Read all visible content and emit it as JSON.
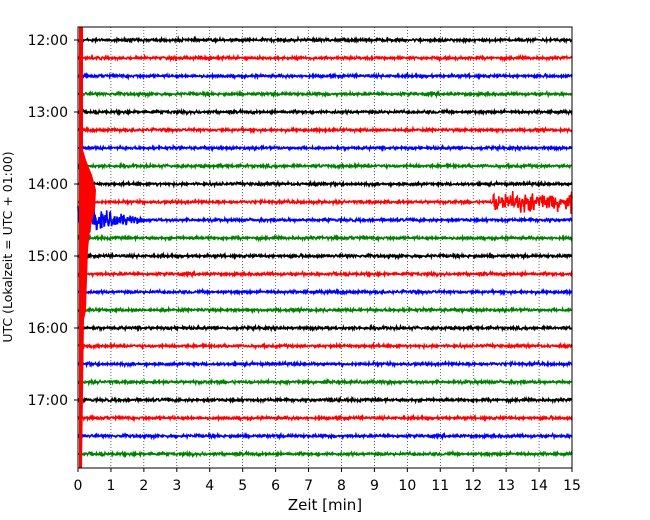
{
  "chart_data": {
    "type": "line",
    "title": "",
    "xlabel": "Zeit  [min]",
    "ylabel": "UTC (Lokalzeit = UTC + 01:00)",
    "xlim": [
      0,
      15
    ],
    "x_ticks": [
      0,
      1,
      2,
      3,
      4,
      5,
      6,
      7,
      8,
      9,
      10,
      11,
      12,
      13,
      14,
      15
    ],
    "y_ticks": [
      "12:00",
      "13:00",
      "14:00",
      "15:00",
      "16:00",
      "17:00"
    ],
    "grid": "vertical dotted",
    "trace_interval_minutes": 15,
    "first_trace": "12:00",
    "trace_colors": [
      "#000000",
      "#ff0000",
      "#0000ff",
      "#008000"
    ],
    "traces": [
      "12:00",
      "12:15",
      "12:30",
      "12:45",
      "13:00",
      "13:15",
      "13:30",
      "13:45",
      "14:00",
      "14:15",
      "14:30",
      "14:45",
      "15:00",
      "15:15",
      "15:30",
      "15:45",
      "16:00",
      "16:15",
      "16:30",
      "16:45",
      "17:00",
      "17:15",
      "17:30",
      "17:45"
    ],
    "events": [
      {
        "trace": "14:15",
        "start_min": 12.6,
        "end_min": 15,
        "description": "local event burst"
      },
      {
        "trace": "14:30",
        "start_min": 0,
        "end_min": 2.2,
        "description": "teleseismic coda"
      },
      {
        "trace": "14:15",
        "start_min": 0,
        "end_min": 0.6,
        "description": "large amplitude onset"
      }
    ]
  }
}
